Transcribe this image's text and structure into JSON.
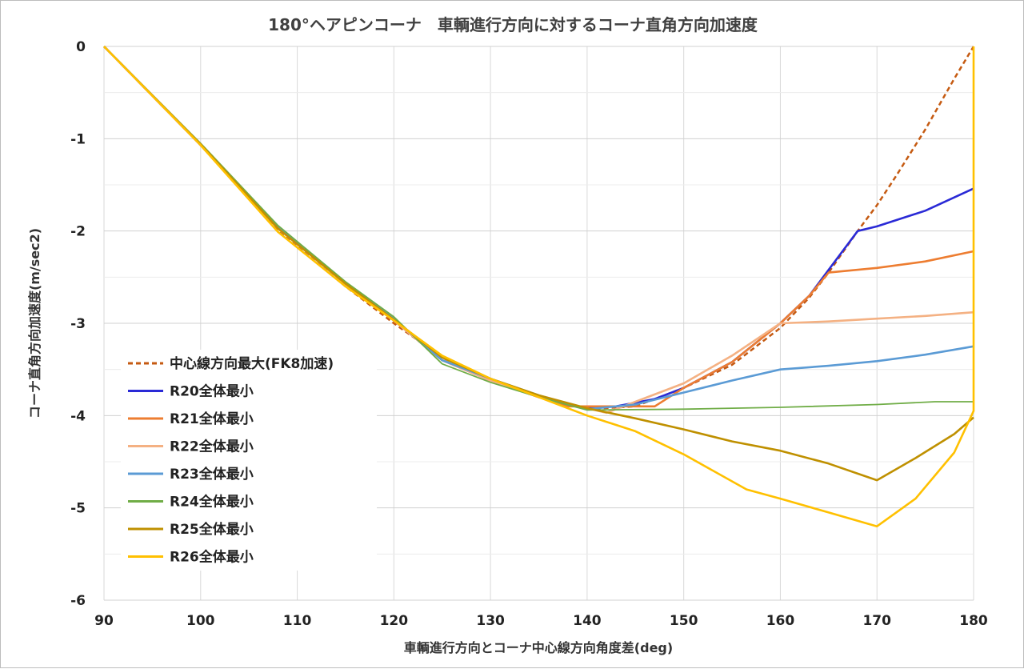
{
  "chart_data": {
    "type": "line",
    "title": "180°ヘアピンコーナ　車輌進行方向に対するコーナ直角方向加速度",
    "xlabel": "車輌進行方向とコーナ中心線方向角度差(deg)",
    "ylabel": "コーナ直角方向加速度(m/sec2)",
    "xlim": [
      90,
      180
    ],
    "ylim": [
      -6,
      0
    ],
    "x_ticks": [
      "90",
      "100",
      "110",
      "120",
      "130",
      "140",
      "150",
      "160",
      "170",
      "180"
    ],
    "y_ticks": [
      "0",
      "-1",
      "-2",
      "-3",
      "-4",
      "-5",
      "-6"
    ],
    "grid": true,
    "legend_position": "left-bottom",
    "series": [
      {
        "name": "中心線方向最大(FK8加速)",
        "color": "#c55a11",
        "dashed": true,
        "points": [
          [
            90,
            0
          ],
          [
            100,
            -1.07
          ],
          [
            108,
            -2.0
          ],
          [
            115,
            -2.6
          ],
          [
            120,
            -3.0
          ],
          [
            125,
            -3.37
          ],
          [
            130,
            -3.62
          ],
          [
            135,
            -3.8
          ],
          [
            140,
            -3.93
          ],
          [
            145,
            -3.9
          ],
          [
            150,
            -3.7
          ],
          [
            155,
            -3.45
          ],
          [
            160,
            -3.05
          ],
          [
            163,
            -2.72
          ],
          [
            165,
            -2.45
          ],
          [
            168,
            -2.0
          ],
          [
            170,
            -1.72
          ],
          [
            172,
            -1.4
          ],
          [
            175,
            -0.9
          ],
          [
            178,
            -0.35
          ],
          [
            180,
            0
          ]
        ]
      },
      {
        "name": "R20全体最小",
        "color": "#2a2ad6",
        "dashed": false,
        "points": [
          [
            90,
            0
          ],
          [
            100,
            -1.07
          ],
          [
            108,
            -1.97
          ],
          [
            115,
            -2.57
          ],
          [
            120,
            -2.97
          ],
          [
            125,
            -3.4
          ],
          [
            130,
            -3.62
          ],
          [
            135,
            -3.8
          ],
          [
            140,
            -3.92
          ],
          [
            143,
            -3.9
          ],
          [
            147,
            -3.82
          ],
          [
            150,
            -3.7
          ],
          [
            155,
            -3.42
          ],
          [
            160,
            -3.0
          ],
          [
            163,
            -2.7
          ],
          [
            165,
            -2.42
          ],
          [
            168,
            -2.0
          ],
          [
            170,
            -1.95
          ],
          [
            175,
            -1.78
          ],
          [
            180,
            -1.54
          ]
        ]
      },
      {
        "name": "R21全体最小",
        "color": "#ed7d31",
        "dashed": false,
        "points": [
          [
            90,
            0
          ],
          [
            100,
            -1.07
          ],
          [
            108,
            -1.97
          ],
          [
            115,
            -2.57
          ],
          [
            120,
            -2.97
          ],
          [
            125,
            -3.4
          ],
          [
            130,
            -3.62
          ],
          [
            135,
            -3.8
          ],
          [
            138,
            -3.9
          ],
          [
            141,
            -3.9
          ],
          [
            147,
            -3.9
          ],
          [
            150,
            -3.7
          ],
          [
            155,
            -3.42
          ],
          [
            160,
            -3.0
          ],
          [
            163,
            -2.7
          ],
          [
            165,
            -2.45
          ],
          [
            170,
            -2.4
          ],
          [
            175,
            -2.33
          ],
          [
            180,
            -2.22
          ]
        ]
      },
      {
        "name": "R22全体最小",
        "color": "#f4b183",
        "dashed": false,
        "points": [
          [
            90,
            0
          ],
          [
            100,
            -1.07
          ],
          [
            108,
            -1.97
          ],
          [
            115,
            -2.57
          ],
          [
            120,
            -2.97
          ],
          [
            125,
            -3.4
          ],
          [
            130,
            -3.62
          ],
          [
            135,
            -3.8
          ],
          [
            140,
            -3.92
          ],
          [
            142,
            -3.97
          ],
          [
            145,
            -3.85
          ],
          [
            150,
            -3.65
          ],
          [
            155,
            -3.35
          ],
          [
            160,
            -3.0
          ],
          [
            165,
            -2.98
          ],
          [
            170,
            -2.95
          ],
          [
            175,
            -2.92
          ],
          [
            180,
            -2.88
          ]
        ]
      },
      {
        "name": "R23全体最小",
        "color": "#5b9bd5",
        "dashed": false,
        "points": [
          [
            90,
            0
          ],
          [
            100,
            -1.06
          ],
          [
            108,
            -1.96
          ],
          [
            115,
            -2.56
          ],
          [
            120,
            -2.95
          ],
          [
            125,
            -3.4
          ],
          [
            130,
            -3.6
          ],
          [
            135,
            -3.78
          ],
          [
            140,
            -3.93
          ],
          [
            145,
            -3.88
          ],
          [
            150,
            -3.75
          ],
          [
            155,
            -3.62
          ],
          [
            160,
            -3.5
          ],
          [
            165,
            -3.46
          ],
          [
            170,
            -3.41
          ],
          [
            175,
            -3.34
          ],
          [
            180,
            -3.25
          ]
        ]
      },
      {
        "name": "R24全体最小",
        "color": "#70ad47",
        "dashed": false,
        "points": [
          [
            90,
            0
          ],
          [
            100,
            -1.05
          ],
          [
            108,
            -1.94
          ],
          [
            115,
            -2.55
          ],
          [
            120,
            -2.93
          ],
          [
            125,
            -3.44
          ],
          [
            130,
            -3.64
          ],
          [
            135,
            -3.8
          ],
          [
            140,
            -3.94
          ],
          [
            150,
            -3.93
          ],
          [
            160,
            -3.91
          ],
          [
            170,
            -3.88
          ],
          [
            176,
            -3.85
          ],
          [
            180,
            -3.85
          ]
        ]
      },
      {
        "name": "R25全体最小",
        "color": "#bf9000",
        "dashed": false,
        "points": [
          [
            90,
            0
          ],
          [
            100,
            -1.06
          ],
          [
            108,
            -1.97
          ],
          [
            115,
            -2.57
          ],
          [
            120,
            -2.96
          ],
          [
            125,
            -3.37
          ],
          [
            130,
            -3.6
          ],
          [
            135,
            -3.78
          ],
          [
            140,
            -3.92
          ],
          [
            145,
            -4.03
          ],
          [
            150,
            -4.15
          ],
          [
            155,
            -4.28
          ],
          [
            160,
            -4.38
          ],
          [
            165,
            -4.52
          ],
          [
            170,
            -4.7
          ],
          [
            174,
            -4.46
          ],
          [
            178,
            -4.2
          ],
          [
            180,
            -4.02
          ]
        ]
      },
      {
        "name": "R26全体最小",
        "color": "#ffc000",
        "dashed": false,
        "points": [
          [
            90,
            0
          ],
          [
            100,
            -1.07
          ],
          [
            108,
            -2.01
          ],
          [
            115,
            -2.6
          ],
          [
            120,
            -2.97
          ],
          [
            125,
            -3.35
          ],
          [
            130,
            -3.6
          ],
          [
            135,
            -3.8
          ],
          [
            140,
            -4.0
          ],
          [
            145,
            -4.17
          ],
          [
            150,
            -4.42
          ],
          [
            156.5,
            -4.8
          ],
          [
            160,
            -4.9
          ],
          [
            165,
            -5.05
          ],
          [
            170,
            -5.2
          ],
          [
            174,
            -4.9
          ],
          [
            178,
            -4.4
          ],
          [
            180,
            -3.95
          ],
          [
            180,
            0
          ]
        ]
      }
    ]
  }
}
